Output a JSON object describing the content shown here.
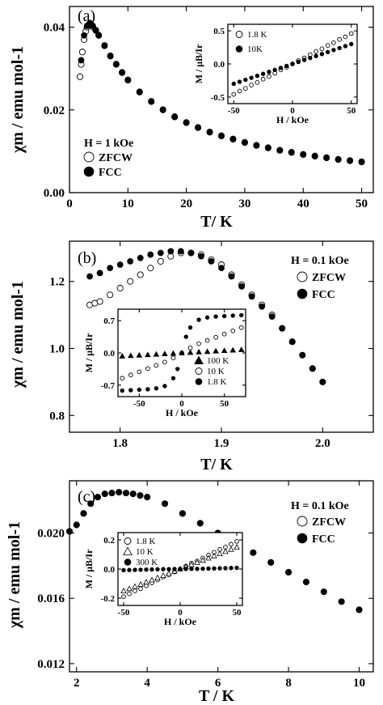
{
  "chart_data": [
    {
      "panel_label": "(a)",
      "type": "scatter",
      "xlabel": "T/ K",
      "ylabel": "χm / emu mol-1",
      "xlim": [
        0,
        52
      ],
      "ylim": [
        0,
        0.045
      ],
      "xticks": [
        "0",
        "10",
        "20",
        "30",
        "40",
        "50"
      ],
      "yticks": [
        "0.00",
        "0.02",
        "0.04"
      ],
      "field_label": "H = 1 kOe",
      "series": [
        {
          "name": "ZFCW",
          "marker": "open-circle",
          "x": [
            1.8,
            2.0,
            2.2,
            2.5,
            2.8,
            3.0,
            3.2,
            3.5,
            3.8,
            4.0,
            4.5,
            5,
            6,
            7,
            8,
            9,
            10,
            12,
            14,
            16,
            18,
            20,
            22,
            24,
            26,
            28,
            30,
            32,
            34,
            36,
            38,
            40,
            42,
            44,
            46,
            48,
            50
          ],
          "y": [
            0.028,
            0.031,
            0.034,
            0.037,
            0.039,
            0.04,
            0.0405,
            0.0408,
            0.0405,
            0.04,
            0.0392,
            0.038,
            0.0355,
            0.033,
            0.031,
            0.029,
            0.0272,
            0.0243,
            0.022,
            0.02,
            0.0183,
            0.0169,
            0.0157,
            0.0146,
            0.0137,
            0.0129,
            0.0121,
            0.0114,
            0.0108,
            0.0102,
            0.0097,
            0.0092,
            0.0088,
            0.0084,
            0.008,
            0.0077,
            0.0074
          ]
        },
        {
          "name": "FCC",
          "marker": "filled-circle",
          "x": [
            2.0,
            2.5,
            3.0,
            3.5,
            4.0,
            4.5,
            5,
            6,
            7,
            8,
            9,
            10,
            12,
            14,
            16,
            18,
            20,
            22,
            24,
            26,
            28,
            30,
            32,
            34,
            36,
            38,
            40,
            42,
            44,
            46,
            48,
            50
          ],
          "y": [
            0.032,
            0.038,
            0.0403,
            0.041,
            0.0403,
            0.0393,
            0.0381,
            0.0356,
            0.0331,
            0.0311,
            0.0291,
            0.0273,
            0.0244,
            0.0221,
            0.0201,
            0.0184,
            0.017,
            0.0158,
            0.0147,
            0.0138,
            0.013,
            0.0122,
            0.0115,
            0.0109,
            0.0103,
            0.0098,
            0.0093,
            0.0089,
            0.0085,
            0.0081,
            0.0078,
            0.0075
          ]
        }
      ],
      "inset": {
        "xlabel": "H / kOe",
        "ylabel": "M / μB/Ir",
        "xlim": [
          -55,
          55
        ],
        "ylim": [
          -0.6,
          0.6
        ],
        "xticks": [
          "-50",
          "0",
          "50"
        ],
        "yticks": [
          "-0.5",
          "0.0",
          "0.5"
        ],
        "series": [
          {
            "name": "1.8 K",
            "marker": "open-circle",
            "x": [
              -50,
              -45,
              -40,
              -35,
              -30,
              -25,
              -20,
              -15,
              -10,
              -5,
              0,
              5,
              10,
              15,
              20,
              25,
              30,
              35,
              40,
              45,
              50
            ],
            "y": [
              -0.46,
              -0.41,
              -0.37,
              -0.32,
              -0.28,
              -0.23,
              -0.19,
              -0.14,
              -0.09,
              -0.05,
              0.0,
              0.05,
              0.09,
              0.14,
              0.19,
              0.23,
              0.28,
              0.32,
              0.37,
              0.41,
              0.46
            ]
          },
          {
            "name": "10K",
            "marker": "filled-circle",
            "x": [
              -50,
              -45,
              -40,
              -35,
              -30,
              -25,
              -20,
              -15,
              -10,
              -5,
              0,
              5,
              10,
              15,
              20,
              25,
              30,
              35,
              40,
              45,
              50
            ],
            "y": [
              -0.3,
              -0.27,
              -0.24,
              -0.21,
              -0.18,
              -0.15,
              -0.12,
              -0.09,
              -0.06,
              -0.03,
              0.0,
              0.03,
              0.06,
              0.09,
              0.12,
              0.15,
              0.18,
              0.21,
              0.24,
              0.27,
              0.3
            ]
          }
        ]
      }
    },
    {
      "panel_label": "(b)",
      "type": "scatter",
      "xlabel": "T/ K",
      "ylabel": "χm / emu mol-1",
      "xlim": [
        1.75,
        2.05
      ],
      "ylim": [
        0.75,
        1.32
      ],
      "xticks": [
        "1.8",
        "1.9",
        "2.0"
      ],
      "yticks": [
        "0.8",
        "1.0",
        "1.2"
      ],
      "field_label": "H = 0.1 kOe",
      "series": [
        {
          "name": "ZFCW",
          "marker": "open-circle",
          "x": [
            1.77,
            1.775,
            1.78,
            1.79,
            1.8,
            1.81,
            1.82,
            1.83,
            1.84,
            1.85,
            1.86,
            1.87,
            1.88,
            1.89,
            1.9,
            1.91,
            1.92,
            1.93,
            1.94,
            1.95,
            1.96,
            1.97,
            1.98,
            1.99,
            2.0
          ],
          "y": [
            1.13,
            1.135,
            1.14,
            1.16,
            1.18,
            1.2,
            1.22,
            1.24,
            1.26,
            1.275,
            1.285,
            1.285,
            1.28,
            1.265,
            1.25,
            1.22,
            1.19,
            1.16,
            1.13,
            1.1,
            1.06,
            1.02,
            0.98,
            0.94,
            0.9
          ]
        },
        {
          "name": "FCC",
          "marker": "filled-circle",
          "x": [
            1.77,
            1.78,
            1.79,
            1.8,
            1.81,
            1.82,
            1.83,
            1.84,
            1.85,
            1.86,
            1.87,
            1.88,
            1.89,
            1.9,
            1.91,
            1.92,
            1.93,
            1.94,
            1.95,
            1.96,
            1.97,
            1.98,
            1.99,
            2.0
          ],
          "y": [
            1.215,
            1.225,
            1.24,
            1.25,
            1.26,
            1.27,
            1.28,
            1.285,
            1.29,
            1.29,
            1.285,
            1.275,
            1.26,
            1.24,
            1.215,
            1.185,
            1.155,
            1.125,
            1.095,
            1.06,
            1.02,
            0.98,
            0.94,
            0.9
          ]
        }
      ],
      "inset": {
        "xlabel": "H / kOe",
        "ylabel": "M / μB/Ir",
        "xlim": [
          -75,
          75
        ],
        "ylim": [
          -0.95,
          0.95
        ],
        "xticks": [
          "-50",
          "0",
          "50"
        ],
        "yticks": [
          "-0.7",
          "0.0",
          "0.7"
        ],
        "series": [
          {
            "name": "100 K",
            "marker": "filled-triangle",
            "x": [
              -70,
              -60,
              -50,
              -40,
              -30,
              -20,
              -10,
              0,
              10,
              20,
              30,
              40,
              50,
              60,
              70
            ],
            "y": [
              -0.07,
              -0.06,
              -0.05,
              -0.04,
              -0.03,
              -0.02,
              -0.01,
              0.0,
              0.01,
              0.02,
              0.03,
              0.04,
              0.05,
              0.06,
              0.07
            ]
          },
          {
            "name": "10 K",
            "marker": "open-circle",
            "x": [
              -70,
              -60,
              -50,
              -40,
              -30,
              -20,
              -10,
              0,
              10,
              20,
              30,
              40,
              50,
              60,
              70
            ],
            "y": [
              -0.55,
              -0.48,
              -0.41,
              -0.34,
              -0.27,
              -0.2,
              -0.11,
              0.0,
              0.11,
              0.2,
              0.27,
              0.34,
              0.41,
              0.48,
              0.55
            ]
          },
          {
            "name": "1.8 K",
            "marker": "filled-circle",
            "x": [
              -70,
              -60,
              -50,
              -40,
              -30,
              -20,
              -10,
              -5,
              0,
              5,
              10,
              20,
              30,
              40,
              50,
              60,
              70
            ],
            "y": [
              -0.82,
              -0.81,
              -0.8,
              -0.79,
              -0.77,
              -0.72,
              -0.55,
              -0.35,
              0.0,
              0.35,
              0.55,
              0.72,
              0.77,
              0.79,
              0.8,
              0.81,
              0.82
            ]
          }
        ]
      }
    },
    {
      "panel_label": "(c)",
      "type": "scatter",
      "xlabel": "T / K",
      "ylabel": "χm / emu mol-1",
      "xlim": [
        1.8,
        10.4
      ],
      "ylim": [
        0.0115,
        0.0232
      ],
      "xticks": [
        "2",
        "4",
        "6",
        "8",
        "10"
      ],
      "yticks": [
        "0.012",
        "0.016",
        "0.020"
      ],
      "field_label": "H = 0.1 kOe",
      "series": [
        {
          "name": "ZFCW",
          "marker": "open-circle",
          "x": [
            1.8,
            2.0,
            2.2,
            2.4,
            2.6,
            2.8,
            3.0,
            3.2,
            3.4,
            3.6,
            3.8,
            4.0,
            4.5,
            5.0,
            5.5,
            6.0,
            6.5,
            7.0,
            7.5,
            8.0,
            8.5,
            9.0,
            9.5,
            10.0
          ],
          "y": [
            0.0201,
            0.0205,
            0.0212,
            0.0218,
            0.0222,
            0.0224,
            0.02245,
            0.0225,
            0.02245,
            0.0224,
            0.0223,
            0.0222,
            0.0218,
            0.0212,
            0.0206,
            0.02,
            0.0194,
            0.0188,
            0.0182,
            0.0176,
            0.017,
            0.0164,
            0.0158,
            0.0153
          ]
        },
        {
          "name": "FCC",
          "marker": "filled-circle",
          "x": [
            1.8,
            2.0,
            2.2,
            2.4,
            2.6,
            2.8,
            3.0,
            3.2,
            3.4,
            3.6,
            3.8,
            4.0,
            4.5,
            5.0,
            5.5,
            6.0,
            6.5,
            7.0,
            7.5,
            8.0,
            8.5,
            9.0,
            9.5,
            10.0
          ],
          "y": [
            0.0201,
            0.0205,
            0.0212,
            0.0218,
            0.0222,
            0.0224,
            0.02245,
            0.0225,
            0.02245,
            0.0224,
            0.0223,
            0.0222,
            0.0218,
            0.0212,
            0.0206,
            0.02,
            0.0194,
            0.0188,
            0.0182,
            0.0176,
            0.017,
            0.0164,
            0.0158,
            0.0153
          ]
        }
      ],
      "inset": {
        "xlabel": "H / kOe",
        "ylabel": "M / μB/Ir",
        "xlim": [
          -55,
          55
        ],
        "ylim": [
          -0.25,
          0.25
        ],
        "xticks": [
          "-50",
          "0",
          "50"
        ],
        "yticks": [
          "-0.2",
          "0.0",
          "0.2"
        ],
        "series": [
          {
            "name": "1.8 K",
            "marker": "open-circle",
            "x": [
              -50,
              -45,
              -40,
              -35,
              -30,
              -25,
              -20,
              -15,
              -10,
              -5,
              0,
              5,
              10,
              15,
              20,
              25,
              30,
              35,
              40,
              45,
              50
            ],
            "y": [
              -0.19,
              -0.17,
              -0.15,
              -0.135,
              -0.115,
              -0.095,
              -0.075,
              -0.055,
              -0.04,
              -0.02,
              0.0,
              0.02,
              0.04,
              0.055,
              0.075,
              0.095,
              0.115,
              0.135,
              0.15,
              0.17,
              0.19
            ]
          },
          {
            "name": "10 K",
            "marker": "open-triangle",
            "x": [
              -50,
              -45,
              -40,
              -35,
              -30,
              -25,
              -20,
              -15,
              -10,
              -5,
              0,
              5,
              10,
              15,
              20,
              25,
              30,
              35,
              40,
              45,
              50
            ],
            "y": [
              -0.15,
              -0.135,
              -0.12,
              -0.105,
              -0.09,
              -0.075,
              -0.06,
              -0.045,
              -0.03,
              -0.015,
              0.0,
              0.015,
              0.03,
              0.045,
              0.06,
              0.075,
              0.09,
              0.105,
              0.12,
              0.135,
              0.15
            ]
          },
          {
            "name": "300 K",
            "marker": "filled-circle",
            "x": [
              -50,
              -45,
              -40,
              -35,
              -30,
              -25,
              -20,
              -15,
              -10,
              -5,
              0,
              5,
              10,
              15,
              20,
              25,
              30,
              35,
              40,
              45,
              50
            ],
            "y": [
              -0.008,
              -0.007,
              -0.006,
              -0.005,
              -0.004,
              -0.003,
              -0.002,
              -0.001,
              -0.001,
              0.0,
              0.0,
              0.0,
              0.001,
              0.001,
              0.002,
              0.003,
              0.004,
              0.005,
              0.006,
              0.007,
              0.008
            ]
          }
        ]
      }
    }
  ]
}
